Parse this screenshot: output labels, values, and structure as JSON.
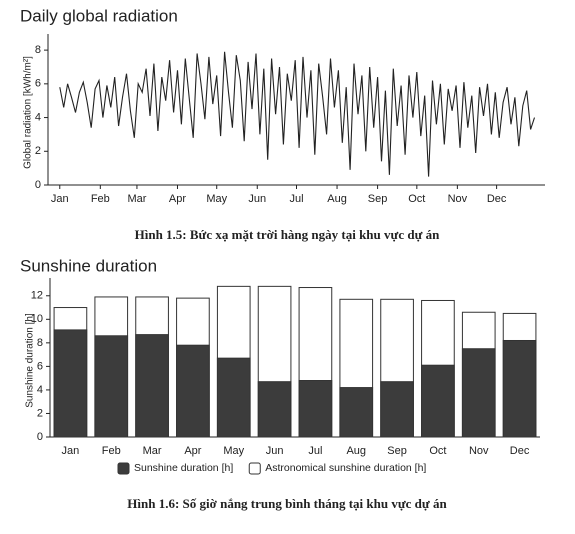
{
  "chart_data": [
    {
      "type": "line",
      "title": "Daily global radiation",
      "y_label": "Global radiation [kWh/m²]",
      "caption": "Hình 1.5: Bức xạ mặt trời hàng ngày tại khu vực dự án",
      "x": [
        1,
        4,
        7,
        10,
        13,
        16,
        19,
        22,
        25,
        28,
        31,
        34,
        37,
        40,
        43,
        46,
        49,
        52,
        55,
        58,
        61,
        64,
        67,
        70,
        73,
        76,
        79,
        82,
        85,
        88,
        91,
        94,
        97,
        100,
        103,
        106,
        109,
        112,
        115,
        118,
        121,
        124,
        127,
        130,
        133,
        136,
        139,
        142,
        145,
        148,
        151,
        154,
        157,
        160,
        163,
        166,
        169,
        172,
        175,
        178,
        181,
        184,
        187,
        190,
        193,
        196,
        199,
        202,
        205,
        208,
        211,
        214,
        217,
        220,
        223,
        226,
        229,
        232,
        235,
        238,
        241,
        244,
        247,
        250,
        253,
        256,
        259,
        262,
        265,
        268,
        271,
        274,
        277,
        280,
        283,
        286,
        289,
        292,
        295,
        298,
        301,
        304,
        307,
        310,
        313,
        316,
        319,
        322,
        325,
        328,
        331,
        334,
        337,
        340,
        343,
        346,
        349,
        352,
        355,
        358,
        361,
        364
      ],
      "series": [
        {
          "name": "Global radiation",
          "color": "#222222",
          "values": [
            5.8,
            4.6,
            6.0,
            5.2,
            4.3,
            5.5,
            6.1,
            4.9,
            3.4,
            5.7,
            6.2,
            4.0,
            5.9,
            4.6,
            6.4,
            3.5,
            5.2,
            6.6,
            4.4,
            2.8,
            6.0,
            5.5,
            6.9,
            4.1,
            7.2,
            3.2,
            6.4,
            5.0,
            7.4,
            4.3,
            6.8,
            3.6,
            7.5,
            5.1,
            2.8,
            7.8,
            6.0,
            3.9,
            7.6,
            4.8,
            6.5,
            2.9,
            7.9,
            5.5,
            3.4,
            7.7,
            6.2,
            2.6,
            7.3,
            4.5,
            7.8,
            3.0,
            6.9,
            1.5,
            7.5,
            4.2,
            7.0,
            2.4,
            6.6,
            5.0,
            7.4,
            2.2,
            7.6,
            4.0,
            6.8,
            1.8,
            7.2,
            5.2,
            3.0,
            7.5,
            4.6,
            6.8,
            2.5,
            5.8,
            0.9,
            7.2,
            4.2,
            6.5,
            2.0,
            7.0,
            3.4,
            6.4,
            1.4,
            5.6,
            0.6,
            6.9,
            3.5,
            5.9,
            1.8,
            6.5,
            4.0,
            6.7,
            2.9,
            5.3,
            0.5,
            6.2,
            3.6,
            6.0,
            2.4,
            5.7,
            4.4,
            5.9,
            2.2,
            6.1,
            3.4,
            5.3,
            1.9,
            5.8,
            4.1,
            6.0,
            3.0,
            5.5,
            2.8,
            4.9,
            5.8,
            3.6,
            5.2,
            2.3,
            4.7,
            5.6,
            3.3,
            4.0
          ]
        }
      ],
      "xlim": [
        -8,
        372
      ],
      "xticks": [
        {
          "value": 1,
          "label": "Jan"
        },
        {
          "value": 32,
          "label": "Feb"
        },
        {
          "value": 60,
          "label": "Mar"
        },
        {
          "value": 91,
          "label": "Apr"
        },
        {
          "value": 121,
          "label": "May"
        },
        {
          "value": 152,
          "label": "Jun"
        },
        {
          "value": 182,
          "label": "Jul"
        },
        {
          "value": 213,
          "label": "Aug"
        },
        {
          "value": 244,
          "label": "Sep"
        },
        {
          "value": 274,
          "label": "Oct"
        },
        {
          "value": 305,
          "label": "Nov"
        },
        {
          "value": 335,
          "label": "Dec"
        }
      ],
      "ylim": [
        0,
        8.6
      ],
      "yticks": [
        0,
        2,
        4,
        6,
        8
      ],
      "grid": false
    },
    {
      "type": "bar",
      "title": "Sunshine duration",
      "y_label": "Sunshine duration [h]",
      "caption": "Hình 1.6: Số giờ nắng trung bình tháng tại khu vực dự án",
      "categories": [
        "Jan",
        "Feb",
        "Mar",
        "Apr",
        "May",
        "Jun",
        "Jul",
        "Aug",
        "Sep",
        "Oct",
        "Nov",
        "Dec"
      ],
      "series": [
        {
          "name": "Sunshine duration [h]",
          "color": "#3c3c3c",
          "values": [
            9.1,
            8.6,
            8.7,
            7.8,
            6.7,
            4.7,
            4.8,
            4.2,
            4.7,
            6.1,
            7.5,
            8.2
          ]
        },
        {
          "name": "Astronomical sunshine duration [h]",
          "color": "#ffffff",
          "values": [
            11.0,
            11.9,
            11.9,
            11.8,
            12.8,
            12.8,
            12.7,
            11.7,
            11.7,
            11.6,
            10.6,
            10.5
          ]
        }
      ],
      "ylim": [
        0,
        13
      ],
      "yticks": [
        0,
        2,
        4,
        6,
        8,
        10,
        12
      ],
      "grid": false,
      "legend": "bottom"
    }
  ]
}
